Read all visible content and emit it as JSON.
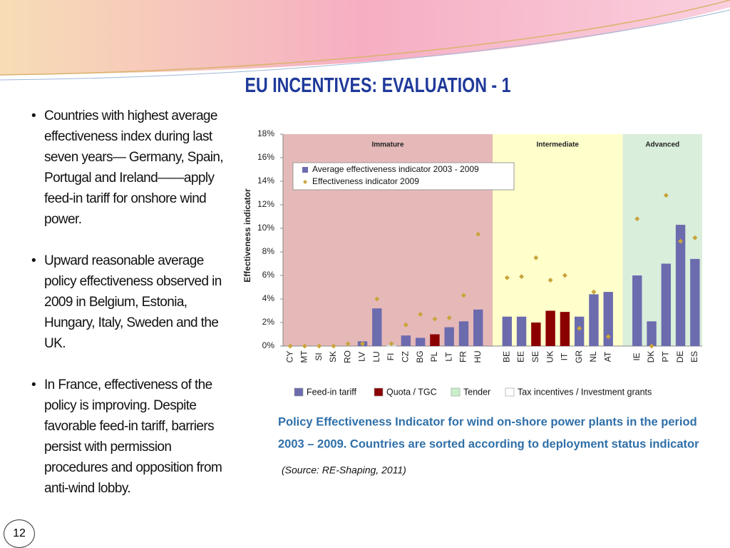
{
  "slide": {
    "title": "EU INCENTIVES: EVALUATION - 1",
    "bullets": [
      "Countries with highest average effectiveness index during last seven years— Germany, Spain, Portugal and Ireland——apply feed-in tariff for onshore wind power.",
      "Upward reasonable average policy effectiveness observed in 2009 in Belgium, Estonia, Hungary, Italy, Sweden and the UK.",
      "In France, effectiveness of the policy is improving. Despite favorable feed-in tariff, barriers persist with permission procedures and opposition from anti-wind lobby."
    ],
    "page_number": "12"
  },
  "chart_data": {
    "type": "bar",
    "y_label": "Effectiveness indicator",
    "caption": [
      "Policy Effectiveness Indicator for wind on-shore power plants in the period",
      "2003 – 2009. Countries are sorted according to deployment status indicator"
    ],
    "source": "(Source: RE-Shaping, 2011)",
    "categories": [
      "CY",
      "MT",
      "SI",
      "SK",
      "RO",
      "LV",
      "LU",
      "FI",
      "CZ",
      "BG",
      "PL",
      "LT",
      "FR",
      "HU",
      null,
      "BE",
      "EE",
      "SE",
      "UK",
      "IT",
      "GR",
      "NL",
      "AT",
      null,
      "IE",
      "DK",
      "PT",
      "DE",
      "ES"
    ],
    "ylim": [
      0,
      18
    ],
    "yticks": [
      {
        "value": 0,
        "label": "0%"
      },
      {
        "value": 2,
        "label": "2%"
      },
      {
        "value": 4,
        "label": "4%"
      },
      {
        "value": 6,
        "label": "6%"
      },
      {
        "value": 8,
        "label": "8%"
      },
      {
        "value": 10,
        "label": "10%"
      },
      {
        "value": 12,
        "label": "12%"
      },
      {
        "value": 14,
        "label": "14%"
      },
      {
        "value": 16,
        "label": "16%"
      },
      {
        "value": 18,
        "label": "18%"
      }
    ],
    "regions": [
      {
        "label": "Immature",
        "color": "#e6b9b9",
        "from": "CY",
        "to": "HU"
      },
      {
        "label": "Intermediate",
        "color": "#ffffcc",
        "from": "BE",
        "to": "AT"
      },
      {
        "label": "Advanced",
        "color": "#d9eedb",
        "from": "IE",
        "to": "ES"
      }
    ],
    "series": [
      {
        "name": "Average effectiveness indicator 2003 - 2009",
        "color": "#6b6bae",
        "mark": "bar",
        "colors": [
          "#6b6bae",
          "#6b6bae",
          "#6b6bae",
          "#6b6bae",
          "#6b6bae",
          "#6b6bae",
          "#6b6bae",
          "#ffffff",
          "#6b6bae",
          "#6b6bae",
          "#8b0000",
          "#6b6bae",
          "#6b6bae",
          "#6b6bae",
          null,
          "#6b6bae",
          "#6b6bae",
          "#8b0000",
          "#8b0000",
          "#8b0000",
          "#6b6bae",
          "#6b6bae",
          "#6b6bae",
          null,
          "#6b6bae",
          "#6b6bae",
          "#6b6bae",
          "#6b6bae",
          "#6b6bae"
        ],
        "values": [
          0,
          0,
          0,
          0,
          0,
          0.4,
          3.2,
          0.1,
          0.9,
          0.7,
          1.0,
          1.6,
          2.1,
          3.1,
          null,
          2.5,
          2.5,
          2.0,
          3.0,
          2.9,
          2.5,
          4.4,
          4.6,
          null,
          6.0,
          2.1,
          7.0,
          10.3,
          7.4
        ]
      },
      {
        "name": "Effectiveness indicator 2009",
        "color": "#c9a43c",
        "mark": "diamond",
        "values": [
          0,
          0,
          0,
          0,
          0.2,
          0.2,
          4.0,
          0.2,
          1.8,
          2.7,
          2.3,
          2.4,
          4.3,
          9.5,
          null,
          5.8,
          5.9,
          7.5,
          5.6,
          6.0,
          1.5,
          4.6,
          0.8,
          null,
          10.8,
          0,
          12.8,
          8.9,
          9.2
        ]
      }
    ],
    "instrument_legend": [
      {
        "name": "Feed-in tariff",
        "color": "#6b6bae"
      },
      {
        "name": "Quota / TGC",
        "color": "#8b0000"
      },
      {
        "name": "Tender",
        "color": "#c8f0c8"
      },
      {
        "name": "Tax incentives / Investment grants",
        "color": "#ffffff"
      }
    ]
  }
}
